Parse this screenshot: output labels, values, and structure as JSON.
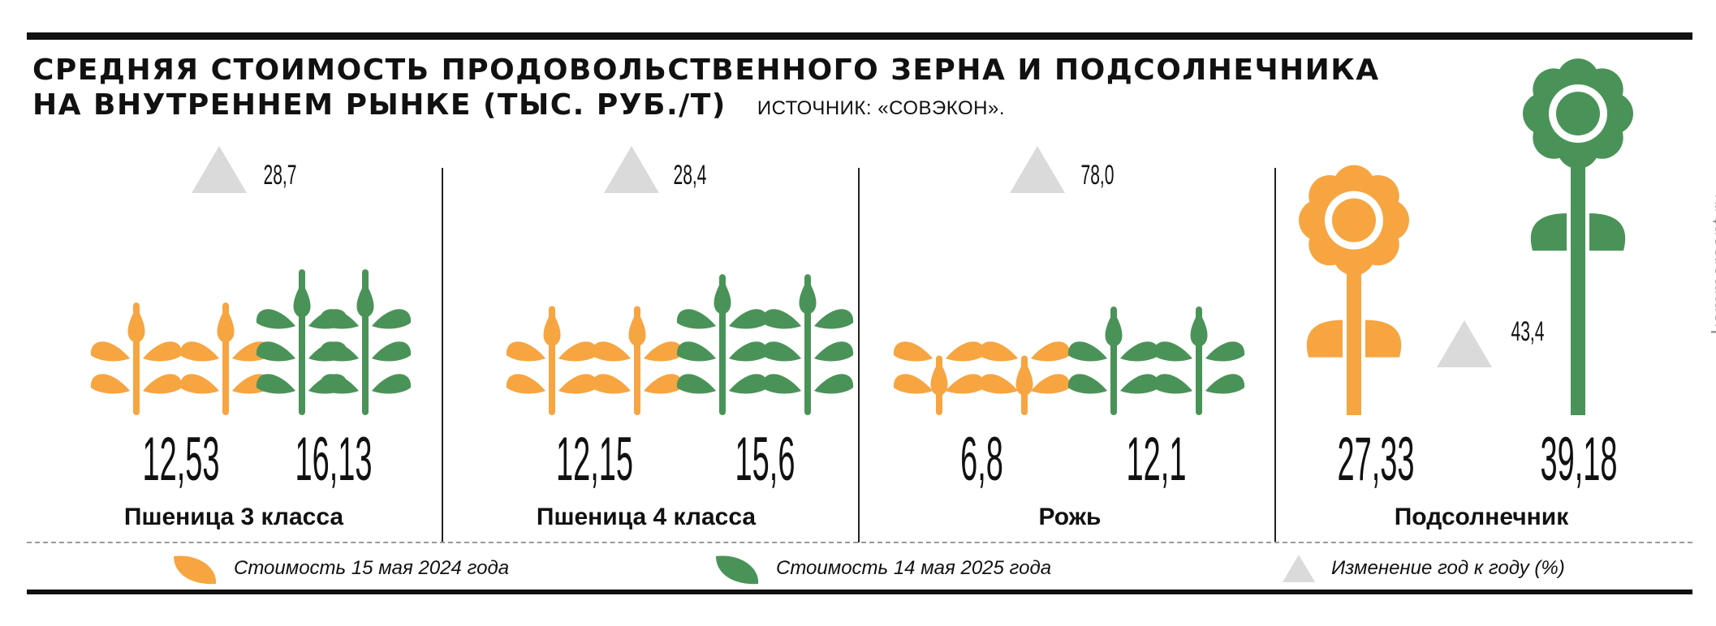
{
  "title": {
    "line1": "СРЕДНЯЯ СТОИМОСТЬ ПРОДОВОЛЬСТВЕННОГО ЗЕРНА И ПОДСОЛНЕЧНИКА",
    "line2": "НА ВНУТРЕННЕМ РЫНКЕ (ТЫС. РУБ./Т)",
    "source": "ИСТОЧНИК: «СОВЭКОН»."
  },
  "watermark": "kommersant.ru",
  "colors": {
    "orange": "#F7A541",
    "green": "#4A9358",
    "triangle": "#DADADA"
  },
  "legend": {
    "orange_label": "Стоимость 15 мая 2024 года",
    "green_label": "Стоимость 14 мая 2025 года",
    "triangle_label": "Изменение год к году (%)"
  },
  "chart_data": {
    "type": "bar",
    "categories": [
      "Пшеница 3 класса",
      "Пшеница 4 класса",
      "Рожь",
      "Подсолнечник"
    ],
    "series": [
      {
        "name": "Стоимость 15 мая 2024 года",
        "values": [
          12.53,
          12.15,
          6.8,
          27.33
        ],
        "labels": [
          "12,53",
          "12,15",
          "6,8",
          "27,33"
        ]
      },
      {
        "name": "Стоимость 14 мая 2025 года",
        "values": [
          16.13,
          15.6,
          12.1,
          39.18
        ],
        "labels": [
          "16,13",
          "15,6",
          "12,1",
          "39,18"
        ]
      },
      {
        "name": "Изменение год к году (%)",
        "values": [
          28.7,
          28.4,
          78.0,
          43.4
        ],
        "labels": [
          "28,7",
          "28,4",
          "78,0",
          "43,4"
        ]
      }
    ],
    "units": "тыс. руб./т",
    "icons": [
      "wheat-icon",
      "wheat-icon",
      "wheat-icon",
      "sunflower-icon"
    ]
  }
}
